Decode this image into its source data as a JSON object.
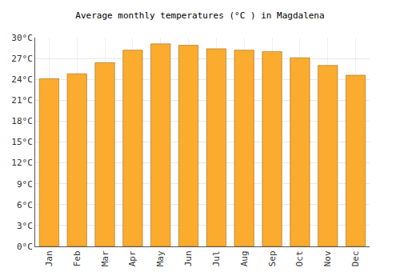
{
  "chart_data": {
    "type": "bar",
    "title": "Average monthly temperatures (°C ) in Magdalena",
    "categories": [
      "Jan",
      "Feb",
      "Mar",
      "Apr",
      "May",
      "Jun",
      "Jul",
      "Aug",
      "Sep",
      "Oct",
      "Nov",
      "Dec"
    ],
    "values": [
      24.1,
      24.8,
      26.4,
      28.2,
      29.1,
      28.9,
      28.4,
      28.2,
      28.0,
      27.1,
      26.0,
      24.6
    ],
    "color": "#fbac2e",
    "ylim": [
      0,
      30
    ],
    "yticks": [
      {
        "value": 0,
        "label": "0°C"
      },
      {
        "value": 3,
        "label": "3°C"
      },
      {
        "value": 6,
        "label": "6°C"
      },
      {
        "value": 9,
        "label": "9°C"
      },
      {
        "value": 12,
        "label": "12°C"
      },
      {
        "value": 15,
        "label": "15°C"
      },
      {
        "value": 18,
        "label": "18°C"
      },
      {
        "value": 21,
        "label": "21°C"
      },
      {
        "value": 24,
        "label": "24°C"
      },
      {
        "value": 27,
        "label": "27°C"
      },
      {
        "value": 30,
        "label": "30°C"
      }
    ],
    "grid": true
  }
}
